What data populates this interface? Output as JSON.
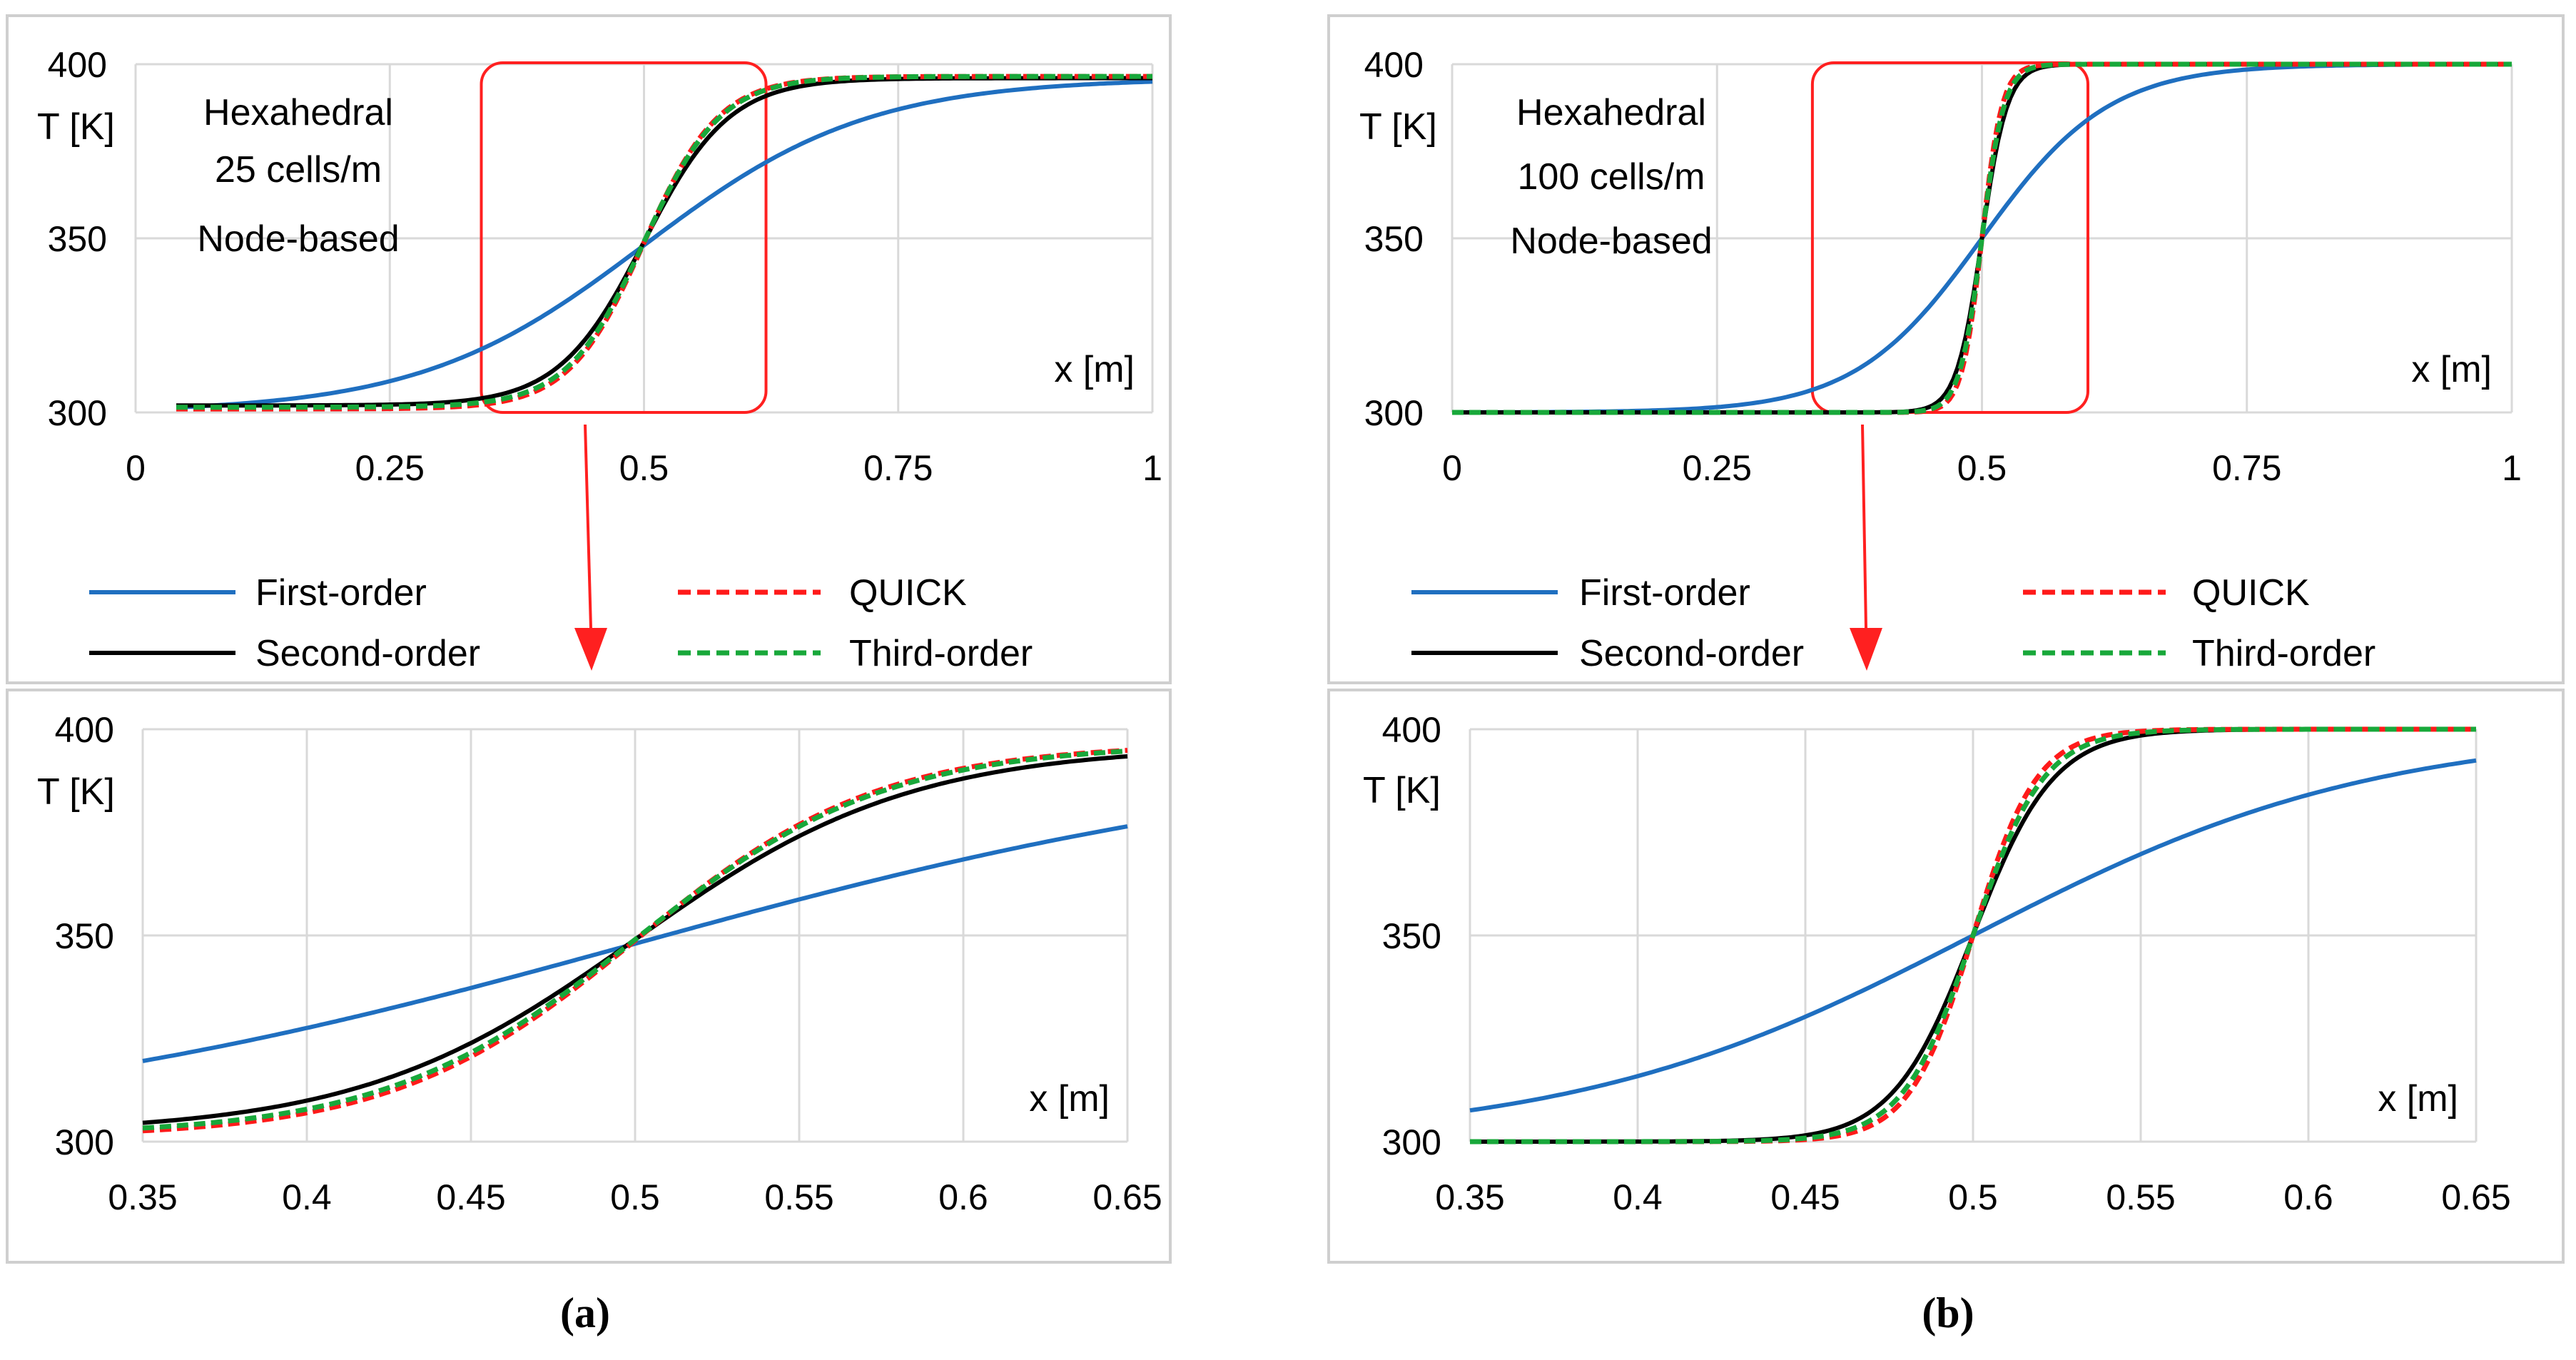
{
  "figure": {
    "panels": [
      {
        "label": "a",
        "label_text": "(a)",
        "info_lines": [
          "Hexahedral",
          "25 cells/m",
          "Node-based"
        ]
      },
      {
        "label": "b",
        "label_text": "(b)",
        "info_lines": [
          "Hexahedral",
          "100 cells/m",
          "Node-based"
        ]
      }
    ],
    "legend": [
      {
        "name": "First-order",
        "color": "#1f6fc0",
        "dash": "solid"
      },
      {
        "name": "QUICK",
        "color": "#ff1a1a",
        "dash": "dashed"
      },
      {
        "name": "Second-order",
        "color": "#000000",
        "dash": "solid"
      },
      {
        "name": "Third-order",
        "color": "#18a83a",
        "dash": "dashed"
      }
    ],
    "colors": {
      "frame": "#cfcfcf",
      "grid": "#d9d9d9",
      "zoom_box": "#ff2020",
      "arrow": "#ff2020"
    }
  },
  "chart_data": [
    {
      "id": "a-top",
      "type": "line",
      "panel": "a",
      "view": "full",
      "xlabel": "x [m]",
      "ylabel": "T [K]",
      "xlim": [
        0,
        1
      ],
      "ylim": [
        300,
        400
      ],
      "xticks": [
        "0",
        "0.25",
        "0.5",
        "0.75",
        "1"
      ],
      "yticks": [
        "300",
        "350",
        "400"
      ],
      "x_range": [
        0.04,
        1.0
      ],
      "zoom_box": {
        "x": [
          0.34,
          0.62
        ],
        "y": [
          300,
          400
        ]
      },
      "series": [
        {
          "name": "First-order",
          "model": "logistic",
          "center": 0.5,
          "width": 0.11,
          "low": 300,
          "high": 396
        },
        {
          "name": "Second-order",
          "model": "logistic",
          "center": 0.5,
          "width": 0.042,
          "low": 302,
          "high": 396
        },
        {
          "name": "QUICK",
          "model": "logistic",
          "center": 0.5,
          "width": 0.037,
          "low": 301,
          "high": 396.5
        },
        {
          "name": "Third-order",
          "model": "logistic",
          "center": 0.5,
          "width": 0.038,
          "low": 301.5,
          "high": 396.5
        }
      ]
    },
    {
      "id": "a-bottom",
      "type": "line",
      "panel": "a",
      "view": "zoom",
      "xlabel": "x [m]",
      "ylabel": "T [K]",
      "xlim": [
        0.35,
        0.65
      ],
      "ylim": [
        300,
        400
      ],
      "xticks": [
        "0.35",
        "0.4",
        "0.45",
        "0.5",
        "0.55",
        "0.6",
        "0.65"
      ],
      "yticks": [
        "300",
        "350",
        "400"
      ],
      "x_range": [
        0.35,
        0.65
      ],
      "series": [
        {
          "name": "First-order",
          "model": "logistic",
          "center": 0.5,
          "width": 0.11,
          "low": 300,
          "high": 396
        },
        {
          "name": "Second-order",
          "model": "logistic",
          "center": 0.5,
          "width": 0.042,
          "low": 302,
          "high": 396
        },
        {
          "name": "QUICK",
          "model": "logistic",
          "center": 0.5,
          "width": 0.037,
          "low": 301,
          "high": 396.5
        },
        {
          "name": "Third-order",
          "model": "logistic",
          "center": 0.5,
          "width": 0.038,
          "low": 301.5,
          "high": 396.5
        }
      ]
    },
    {
      "id": "b-top",
      "type": "line",
      "panel": "b",
      "view": "full",
      "xlabel": "x [m]",
      "ylabel": "T [K]",
      "xlim": [
        0,
        1
      ],
      "ylim": [
        300,
        400
      ],
      "xticks": [
        "0",
        "0.25",
        "0.5",
        "0.75",
        "1"
      ],
      "yticks": [
        "300",
        "350",
        "400"
      ],
      "x_range": [
        0.0,
        1.0
      ],
      "zoom_box": {
        "x": [
          0.34,
          0.6
        ],
        "y": [
          300,
          400
        ]
      },
      "series": [
        {
          "name": "First-order",
          "model": "logistic",
          "center": 0.5,
          "width": 0.06,
          "low": 300,
          "high": 400
        },
        {
          "name": "Second-order",
          "model": "logistic",
          "center": 0.5,
          "width": 0.012,
          "low": 300,
          "high": 400
        },
        {
          "name": "QUICK",
          "model": "logistic",
          "center": 0.5,
          "width": 0.0095,
          "low": 300,
          "high": 400
        },
        {
          "name": "Third-order",
          "model": "logistic",
          "center": 0.5,
          "width": 0.0105,
          "low": 300,
          "high": 400
        }
      ]
    },
    {
      "id": "b-bottom",
      "type": "line",
      "panel": "b",
      "view": "zoom",
      "xlabel": "x [m]",
      "ylabel": "T [K]",
      "xlim": [
        0.35,
        0.65
      ],
      "ylim": [
        300,
        400
      ],
      "xticks": [
        "0.35",
        "0.4",
        "0.45",
        "0.5",
        "0.55",
        "0.6",
        "0.65"
      ],
      "yticks": [
        "300",
        "350",
        "400"
      ],
      "x_range": [
        0.35,
        0.65
      ],
      "series": [
        {
          "name": "First-order",
          "model": "logistic",
          "center": 0.5,
          "width": 0.06,
          "low": 300,
          "high": 400
        },
        {
          "name": "Second-order",
          "model": "logistic",
          "center": 0.5,
          "width": 0.012,
          "low": 300,
          "high": 400
        },
        {
          "name": "QUICK",
          "model": "logistic",
          "center": 0.5,
          "width": 0.0095,
          "low": 300,
          "high": 400
        },
        {
          "name": "Third-order",
          "model": "logistic",
          "center": 0.5,
          "width": 0.0105,
          "low": 300,
          "high": 400
        }
      ]
    }
  ]
}
